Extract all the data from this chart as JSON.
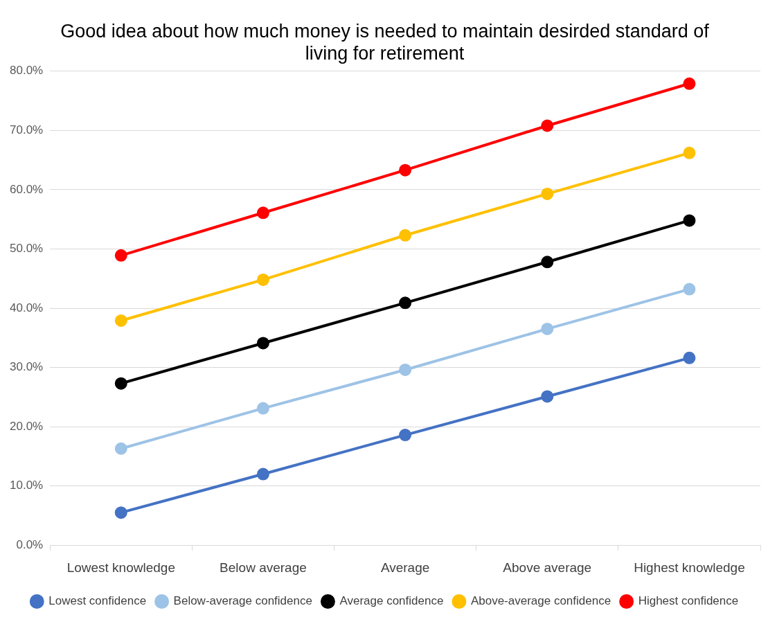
{
  "chart_data": {
    "type": "line",
    "title": [
      "Good idea about how much money is needed to maintain desirded standard of",
      "living for retirement"
    ],
    "categories": [
      "Lowest knowledge",
      "Below average",
      "Average",
      "Above average",
      "Highest knowledge"
    ],
    "series": [
      {
        "name": "Lowest confidence",
        "color": "#4472c4",
        "values": [
          5.5,
          12.0,
          18.6,
          25.1,
          31.6
        ]
      },
      {
        "name": "Below-average confidence",
        "color": "#9dc3e6",
        "values": [
          16.3,
          23.1,
          29.6,
          36.5,
          43.2
        ]
      },
      {
        "name": "Average confidence",
        "color": "#000000",
        "values": [
          27.3,
          34.1,
          40.9,
          47.8,
          54.8
        ]
      },
      {
        "name": "Above-average confidence",
        "color": "#ffc000",
        "values": [
          37.9,
          44.8,
          52.3,
          59.3,
          66.2
        ]
      },
      {
        "name": "Highest confidence",
        "color": "#ff0000",
        "values": [
          48.9,
          56.1,
          63.3,
          70.8,
          77.9
        ]
      }
    ],
    "ylim": [
      0,
      80
    ],
    "yticks": [
      {
        "value": 0,
        "label": "0.0%"
      },
      {
        "value": 10,
        "label": "10.0%"
      },
      {
        "value": 20,
        "label": "20.0%"
      },
      {
        "value": 30,
        "label": "30.0%"
      },
      {
        "value": 40,
        "label": "40.0%"
      },
      {
        "value": 50,
        "label": "50.0%"
      },
      {
        "value": 60,
        "label": "60.0%"
      },
      {
        "value": 70,
        "label": "70.0%"
      },
      {
        "value": 80,
        "label": "80.0%"
      }
    ],
    "grid": "y",
    "legend": "bottom",
    "marker": "circle",
    "line_style": "solid"
  }
}
